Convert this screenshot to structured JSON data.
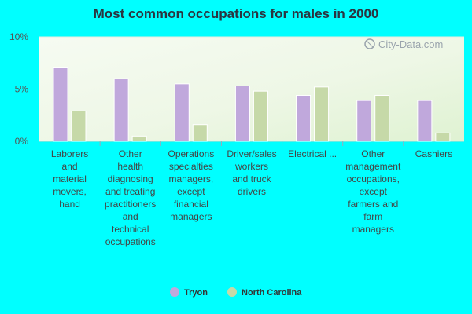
{
  "chart_data": {
    "type": "bar",
    "title": "Most common occupations for males in 2000",
    "categories": [
      [
        "Laborers",
        "and",
        "material",
        "movers,",
        "hand"
      ],
      [
        "Other",
        "health",
        "diagnosing",
        "and treating",
        "practitioners",
        "and",
        "technical",
        "occupations"
      ],
      [
        "Operations",
        "specialties",
        "managers,",
        "except",
        "financial",
        "managers"
      ],
      [
        "Driver/sales",
        "workers",
        "and truck",
        "drivers"
      ],
      [
        "Electrical ..."
      ],
      [
        "Other",
        "management",
        "occupations,",
        "except",
        "farmers and",
        "farm",
        "managers"
      ],
      [
        "Cashiers"
      ]
    ],
    "series": [
      {
        "name": "Tryon",
        "color": "#c0a8dc",
        "values": [
          7.1,
          6.0,
          5.5,
          5.3,
          4.4,
          3.9,
          3.9
        ]
      },
      {
        "name": "North Carolina",
        "color": "#c6d9a8",
        "values": [
          2.9,
          0.5,
          1.6,
          4.8,
          5.2,
          4.4,
          0.8
        ]
      }
    ],
    "ylim": [
      0,
      10
    ],
    "yticks": [
      "0%",
      "5%",
      "10%"
    ],
    "ytick_values": [
      0,
      5,
      10
    ],
    "legend_position": "bottom",
    "watermark": "City-Data.com"
  }
}
